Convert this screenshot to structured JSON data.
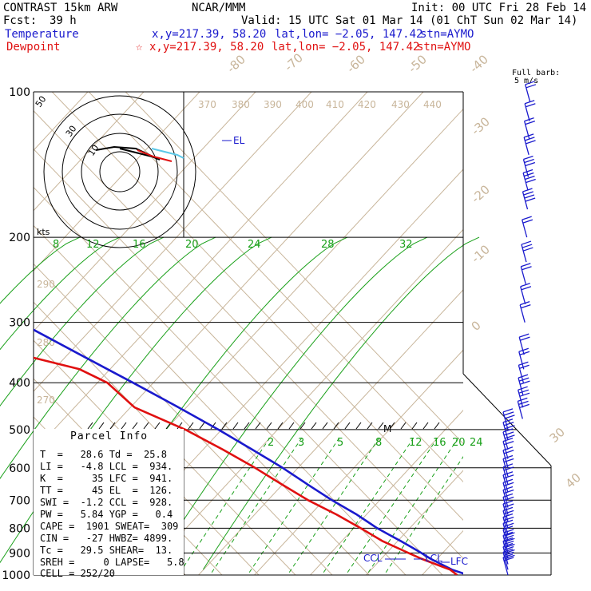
{
  "header": {
    "title": "CONTRAST 15km ARW",
    "center": "NCAR/MMM",
    "init": "Init: 00 UTC Fri 28 Feb 14",
    "fcst_label": "Fcst:",
    "fcst_value": "39 h",
    "valid": "Valid: 15 UTC Sat 01 Mar 14 (01 ChT Sun 02 Mar 14)"
  },
  "temperature_row": {
    "label": "Temperature",
    "xy": "x,y=217.39, 58.20",
    "latlon": "lat,lon= −2.05, 147.42",
    "stn": "stn=AYMO",
    "color": "#1a1acd"
  },
  "dewpoint_row": {
    "label": "Dewpoint",
    "marker": "☆",
    "xy": "x,y=217.39, 58.20",
    "latlon": "lat,lon= −2.05, 147.42",
    "stn": "stn=AYMO",
    "color": "#e01010"
  },
  "barb_header": {
    "line1": "Full barb:",
    "line2": "5 m/s"
  },
  "parcel_info": {
    "title": "Parcel Info",
    "rows": [
      "T  =   28.6 Td =  25.8",
      "LI =   -4.8 LCL =  934.",
      "K  =     35 LFC =  941.",
      "TT =     45 EL  =  126.",
      "SWI =  -1.2 CCL =  928.",
      "PW =   5.84 YGP =   0.4",
      "CAPE =  1901 SWEAT=  309",
      "CIN =   -27 HWBZ= 4899.",
      "Tc =   29.5 SHEAR=  13.",
      "SREH =     0 LAPSE=   5.8",
      "CELL = 252/20"
    ]
  },
  "chart_data": {
    "type": "line",
    "diagram": "skew-T log-p",
    "yaxis": {
      "label": "",
      "scale": "log",
      "ticks": [
        100,
        200,
        300,
        400,
        500,
        600,
        700,
        800,
        900,
        1000
      ],
      "ylim": [
        1000,
        100
      ]
    },
    "isotherms_labels": [
      "-80",
      "-70",
      "-60",
      "-50",
      "-40",
      "-30",
      "-20",
      "-10",
      "0",
      "30",
      "40"
    ],
    "theta_labels": [
      "370",
      "380",
      "390",
      "400",
      "410",
      "420",
      "430",
      "440",
      "290",
      "280",
      "270"
    ],
    "mixing_ratio_upper": [
      "8",
      "12",
      "16",
      "20",
      "24",
      "28",
      "32"
    ],
    "mixing_ratio_lower": [
      "2",
      "3",
      "5",
      "8",
      "12",
      "16",
      "20",
      "24"
    ],
    "hodograph": {
      "units": "kts",
      "ring_labels": [
        "50",
        "30",
        "10"
      ]
    },
    "annotations": [
      "EL",
      "CCL",
      "LCL",
      "LFC",
      "M"
    ],
    "series": [
      {
        "name": "Temperature",
        "color": "#1a1acd",
        "points": [
          [
            1000,
            27
          ],
          [
            975,
            24
          ],
          [
            950,
            22.5
          ],
          [
            925,
            21
          ],
          [
            900,
            20
          ],
          [
            875,
            18.8
          ],
          [
            850,
            17.5
          ],
          [
            825,
            16
          ],
          [
            800,
            14.5
          ],
          [
            775,
            13.5
          ],
          [
            750,
            12.5
          ],
          [
            700,
            9.5
          ],
          [
            650,
            7
          ],
          [
            600,
            4.5
          ],
          [
            550,
            1
          ],
          [
            500,
            -3
          ],
          [
            450,
            -8
          ],
          [
            400,
            -14
          ],
          [
            350,
            -21
          ],
          [
            300,
            -29
          ],
          [
            250,
            -39
          ],
          [
            200,
            -52
          ],
          [
            175,
            -60
          ],
          [
            150,
            -68
          ],
          [
            125,
            -74
          ],
          [
            110,
            -79
          ],
          [
            100,
            -82
          ]
        ]
      },
      {
        "name": "Dewpoint",
        "color": "#e01010",
        "points": [
          [
            1000,
            24
          ],
          [
            975,
            23.5
          ],
          [
            950,
            21
          ],
          [
            925,
            18.5
          ],
          [
            900,
            16.5
          ],
          [
            850,
            12.5
          ],
          [
            800,
            10
          ],
          [
            750,
            7
          ],
          [
            700,
            3
          ],
          [
            650,
            0
          ],
          [
            600,
            -3
          ],
          [
            550,
            -7
          ],
          [
            500,
            -12
          ],
          [
            450,
            -20
          ],
          [
            400,
            -21
          ],
          [
            375,
            -25
          ],
          [
            350,
            -37
          ],
          [
            320,
            -46
          ],
          [
            300,
            -54
          ],
          [
            250,
            -66
          ],
          [
            200,
            -76
          ],
          [
            175,
            -80
          ],
          [
            150,
            -84
          ],
          [
            125,
            -87
          ],
          [
            110,
            -89
          ],
          [
            100,
            -90
          ]
        ]
      }
    ],
    "wind_barbs": [
      {
        "p": 1000,
        "speed": 10
      },
      {
        "p": 975,
        "speed": 15
      },
      {
        "p": 950,
        "speed": 15
      },
      {
        "p": 925,
        "speed": 15
      },
      {
        "p": 900,
        "speed": 15
      },
      {
        "p": 875,
        "speed": 15
      },
      {
        "p": 850,
        "speed": 10
      },
      {
        "p": 825,
        "speed": 10
      },
      {
        "p": 800,
        "speed": 10
      },
      {
        "p": 775,
        "speed": 10
      },
      {
        "p": 750,
        "speed": 10
      },
      {
        "p": 725,
        "speed": 10
      },
      {
        "p": 700,
        "speed": 10
      },
      {
        "p": 675,
        "speed": 10
      },
      {
        "p": 650,
        "speed": 10
      },
      {
        "p": 625,
        "speed": 10
      },
      {
        "p": 600,
        "speed": 10
      },
      {
        "p": 575,
        "speed": 10
      },
      {
        "p": 550,
        "speed": 15
      },
      {
        "p": 525,
        "speed": 15
      },
      {
        "p": 500,
        "speed": 15
      },
      {
        "p": 475,
        "speed": 15
      },
      {
        "p": 450,
        "speed": 15
      },
      {
        "p": 425,
        "speed": 15
      },
      {
        "p": 400,
        "speed": 10
      },
      {
        "p": 375,
        "speed": 10
      },
      {
        "p": 350,
        "speed": 10
      },
      {
        "p": 300,
        "speed": 10
      },
      {
        "p": 275,
        "speed": 10
      },
      {
        "p": 250,
        "speed": 10
      },
      {
        "p": 225,
        "speed": 15
      },
      {
        "p": 200,
        "speed": 10
      },
      {
        "p": 175,
        "speed": 20
      },
      {
        "p": 160,
        "speed": 20
      },
      {
        "p": 150,
        "speed": 15
      },
      {
        "p": 135,
        "speed": 15
      },
      {
        "p": 125,
        "speed": 10
      },
      {
        "p": 115,
        "speed": 10
      },
      {
        "p": 105,
        "speed": 10
      }
    ]
  }
}
